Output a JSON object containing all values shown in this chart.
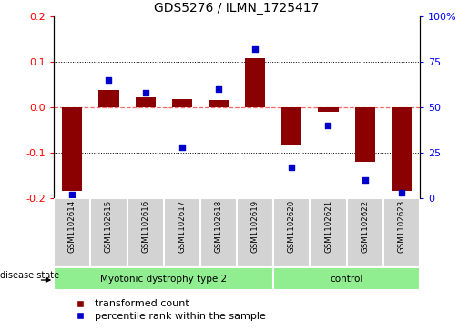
{
  "title": "GDS5276 / ILMN_1725417",
  "samples": [
    "GSM1102614",
    "GSM1102615",
    "GSM1102616",
    "GSM1102617",
    "GSM1102618",
    "GSM1102619",
    "GSM1102620",
    "GSM1102621",
    "GSM1102622",
    "GSM1102623"
  ],
  "transformed_count": [
    -0.185,
    0.038,
    0.022,
    0.018,
    0.015,
    0.108,
    -0.085,
    -0.01,
    -0.12,
    -0.185
  ],
  "percentile_rank": [
    2,
    65,
    58,
    28,
    60,
    82,
    17,
    40,
    10,
    3
  ],
  "group_boundary": 6,
  "ylim_left": [
    -0.2,
    0.2
  ],
  "ylim_right": [
    0,
    100
  ],
  "yticks_left": [
    -0.2,
    -0.1,
    0.0,
    0.1,
    0.2
  ],
  "yticks_right": [
    0,
    25,
    50,
    75,
    100
  ],
  "bar_color": "#8B0000",
  "dot_color": "#0000CD",
  "zero_line_color": "#FF6666",
  "grid_color": "#000000",
  "legend_items": [
    "transformed count",
    "percentile rank within the sample"
  ],
  "disease_state_label": "disease state",
  "group1_label": "Myotonic dystrophy type 2",
  "group2_label": "control",
  "cell_color": "#d3d3d3",
  "group_color": "#90EE90"
}
